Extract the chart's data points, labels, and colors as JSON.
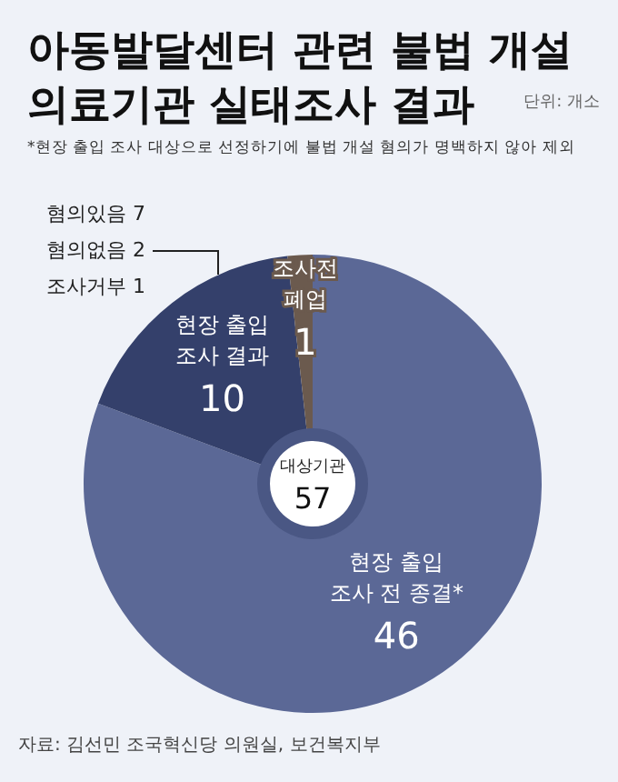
{
  "chart_data": {
    "type": "donut",
    "title": "아동발달센터 관련 불법 개설 의료기관 실태조사 결과",
    "subtitle": "*현장 출입 조사 대상으로 선정하기에 불법 개설 혐의가 명백하지 않아 제외",
    "categories": [
      "현장 출입 조사 전 종결*",
      "현장 출입 조사 결과",
      "조사전 폐업"
    ],
    "values": [
      46,
      10,
      1
    ],
    "colors": [
      "#5b6896",
      "#34406b",
      "#6b5a4e"
    ],
    "data_labels": true,
    "annotations": [
      "단위: 개소",
      "대상기관\n57",
      "혐의있음 7",
      "혐의없음 2",
      "조사거부 1",
      "자료: 김선민 조국혁신당 의원실, 보건복지부"
    ]
  }
}
